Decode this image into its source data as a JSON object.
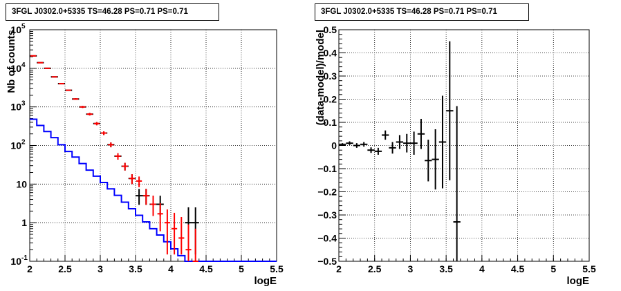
{
  "chart_data": [
    {
      "type": "step",
      "title": "3FGL J0302.0+5335 TS=46.28 PS=0.71 PS=0.71",
      "xlabel": "logE",
      "ylabel": "Nb of counts",
      "xlim": [
        2,
        5.5
      ],
      "ylim": [
        0.1,
        100000
      ],
      "yscale": "log",
      "grid": true,
      "xticks": [
        "2",
        "2.5",
        "3",
        "3.5",
        "4",
        "4.5",
        "5",
        "5.5"
      ],
      "yticks": [
        {
          "value": 0.1,
          "base": "10",
          "exp": "-1",
          "label": "10"
        },
        {
          "value": 1,
          "label": "1"
        },
        {
          "value": 10,
          "label": "10"
        },
        {
          "value": 100,
          "base": "10",
          "exp": "2"
        },
        {
          "value": 1000,
          "base": "10",
          "exp": "3"
        },
        {
          "value": 10000,
          "base": "10",
          "exp": "4"
        },
        {
          "value": 100000,
          "base": "10",
          "exp": "5"
        }
      ],
      "series": [
        {
          "kind": "model-step",
          "color": "#0000ff",
          "bin_edges": [
            2.0,
            2.1,
            2.2,
            2.3,
            2.4,
            2.5,
            2.6,
            2.7,
            2.8,
            2.9,
            3.0,
            3.1,
            3.2,
            3.3,
            3.4,
            3.5,
            3.6,
            3.7,
            3.8,
            3.9,
            4.0,
            4.1,
            4.2,
            4.3,
            4.4,
            4.5,
            4.6,
            4.7,
            4.8,
            4.9,
            5.0,
            5.1,
            5.2,
            5.3,
            5.4,
            5.5
          ],
          "values": [
            480,
            330,
            230,
            160,
            105,
            70,
            50,
            34,
            23,
            16,
            11,
            7.5,
            5.1,
            3.4,
            2.3,
            1.55,
            1.05,
            0.7,
            0.48,
            0.32,
            0.21,
            0.14,
            0.1,
            0.1,
            0.1,
            0.1,
            0.1,
            0.1,
            0.1,
            0.1,
            0.1,
            0.1,
            0.1,
            0.1,
            0.1
          ]
        },
        {
          "kind": "data-errorbars",
          "color": "#000000",
          "x": [
            2.05,
            2.15,
            2.25,
            2.35,
            2.45,
            2.55,
            2.65,
            2.75,
            2.85,
            2.95,
            3.05,
            3.15,
            3.25,
            3.35,
            3.45,
            3.55,
            3.65,
            3.75,
            3.85,
            4.25,
            4.35
          ],
          "y": [
            21000,
            14000,
            10000,
            6000,
            4000,
            2700,
            1600,
            1000,
            650,
            370,
            210,
            105,
            53,
            29,
            14,
            5,
            5,
            3,
            3,
            1,
            1
          ],
          "ylo": [
            20700,
            13760,
            9800,
            5850,
            3870,
            2600,
            1520,
            940,
            600,
            335,
            187,
            90,
            43,
            22.5,
            10,
            2.9,
            2.9,
            1.5,
            1.5,
            0.15,
            0.15
          ],
          "yhi": [
            21300,
            14240,
            10200,
            6150,
            4130,
            2800,
            1680,
            1060,
            700,
            405,
            233,
            120,
            63,
            35.5,
            18,
            7.5,
            7.5,
            5,
            5,
            2.5,
            2.5
          ]
        },
        {
          "kind": "model-points",
          "color": "#ff0000",
          "x": [
            2.05,
            2.15,
            2.25,
            2.35,
            2.45,
            2.55,
            2.65,
            2.75,
            2.85,
            2.95,
            3.05,
            3.15,
            3.25,
            3.35,
            3.45,
            3.55,
            3.65,
            3.75,
            3.85,
            3.95,
            4.05,
            4.15,
            4.25,
            4.35
          ],
          "y": [
            21000,
            14000,
            10000,
            6000,
            4000,
            2700,
            1600,
            1000,
            650,
            370,
            210,
            105,
            53,
            29,
            14,
            12,
            5,
            3,
            1.7,
            1,
            0.7,
            0.4,
            0.2,
            0.1
          ],
          "ylo": [
            20700,
            13760,
            9800,
            5850,
            3870,
            2600,
            1520,
            940,
            600,
            335,
            187,
            90,
            43,
            22.5,
            10,
            8.3,
            2.9,
            1.5,
            0.6,
            0.15,
            0.15,
            0.15,
            0.1,
            0.1
          ],
          "yhi": [
            21300,
            14240,
            10200,
            6150,
            4130,
            2800,
            1680,
            1060,
            700,
            405,
            233,
            120,
            63,
            35.5,
            18,
            15.7,
            7.5,
            5,
            3.2,
            2.2,
            1.8,
            1.4,
            0.9,
            0.7
          ]
        }
      ]
    },
    {
      "type": "scatter-errorbars",
      "title": "3FGL J0302.0+5335 TS=46.28 PS=0.71 PS=0.71",
      "xlabel": "logE",
      "ylabel": "(data-model)/model",
      "xlim": [
        2,
        5.5
      ],
      "ylim": [
        -0.5,
        0.5
      ],
      "grid": true,
      "xticks": [
        "2",
        "2.5",
        "3",
        "3.5",
        "4",
        "4.5",
        "5",
        "5.5"
      ],
      "yticks": [
        "−0.5",
        "−0.4",
        "−0.3",
        "−0.2",
        "−0.1",
        "0",
        "0.1",
        "0.2",
        "0.3",
        "0.4",
        "0.5"
      ],
      "series": [
        {
          "color": "#000000",
          "x": [
            2.05,
            2.15,
            2.25,
            2.35,
            2.45,
            2.55,
            2.65,
            2.75,
            2.85,
            2.95,
            3.05,
            3.15,
            3.25,
            3.35,
            3.45,
            3.55,
            3.65
          ],
          "y": [
            0.005,
            0.01,
            0.0,
            0.005,
            -0.02,
            -0.025,
            0.045,
            -0.01,
            0.015,
            0.01,
            0.01,
            0.05,
            -0.065,
            -0.06,
            0.015,
            0.15,
            -0.33
          ],
          "err": [
            0.005,
            0.008,
            0.01,
            0.01,
            0.012,
            0.015,
            0.02,
            0.025,
            0.03,
            0.04,
            0.05,
            0.065,
            0.09,
            0.13,
            0.2,
            0.3,
            0.5
          ]
        }
      ]
    }
  ]
}
